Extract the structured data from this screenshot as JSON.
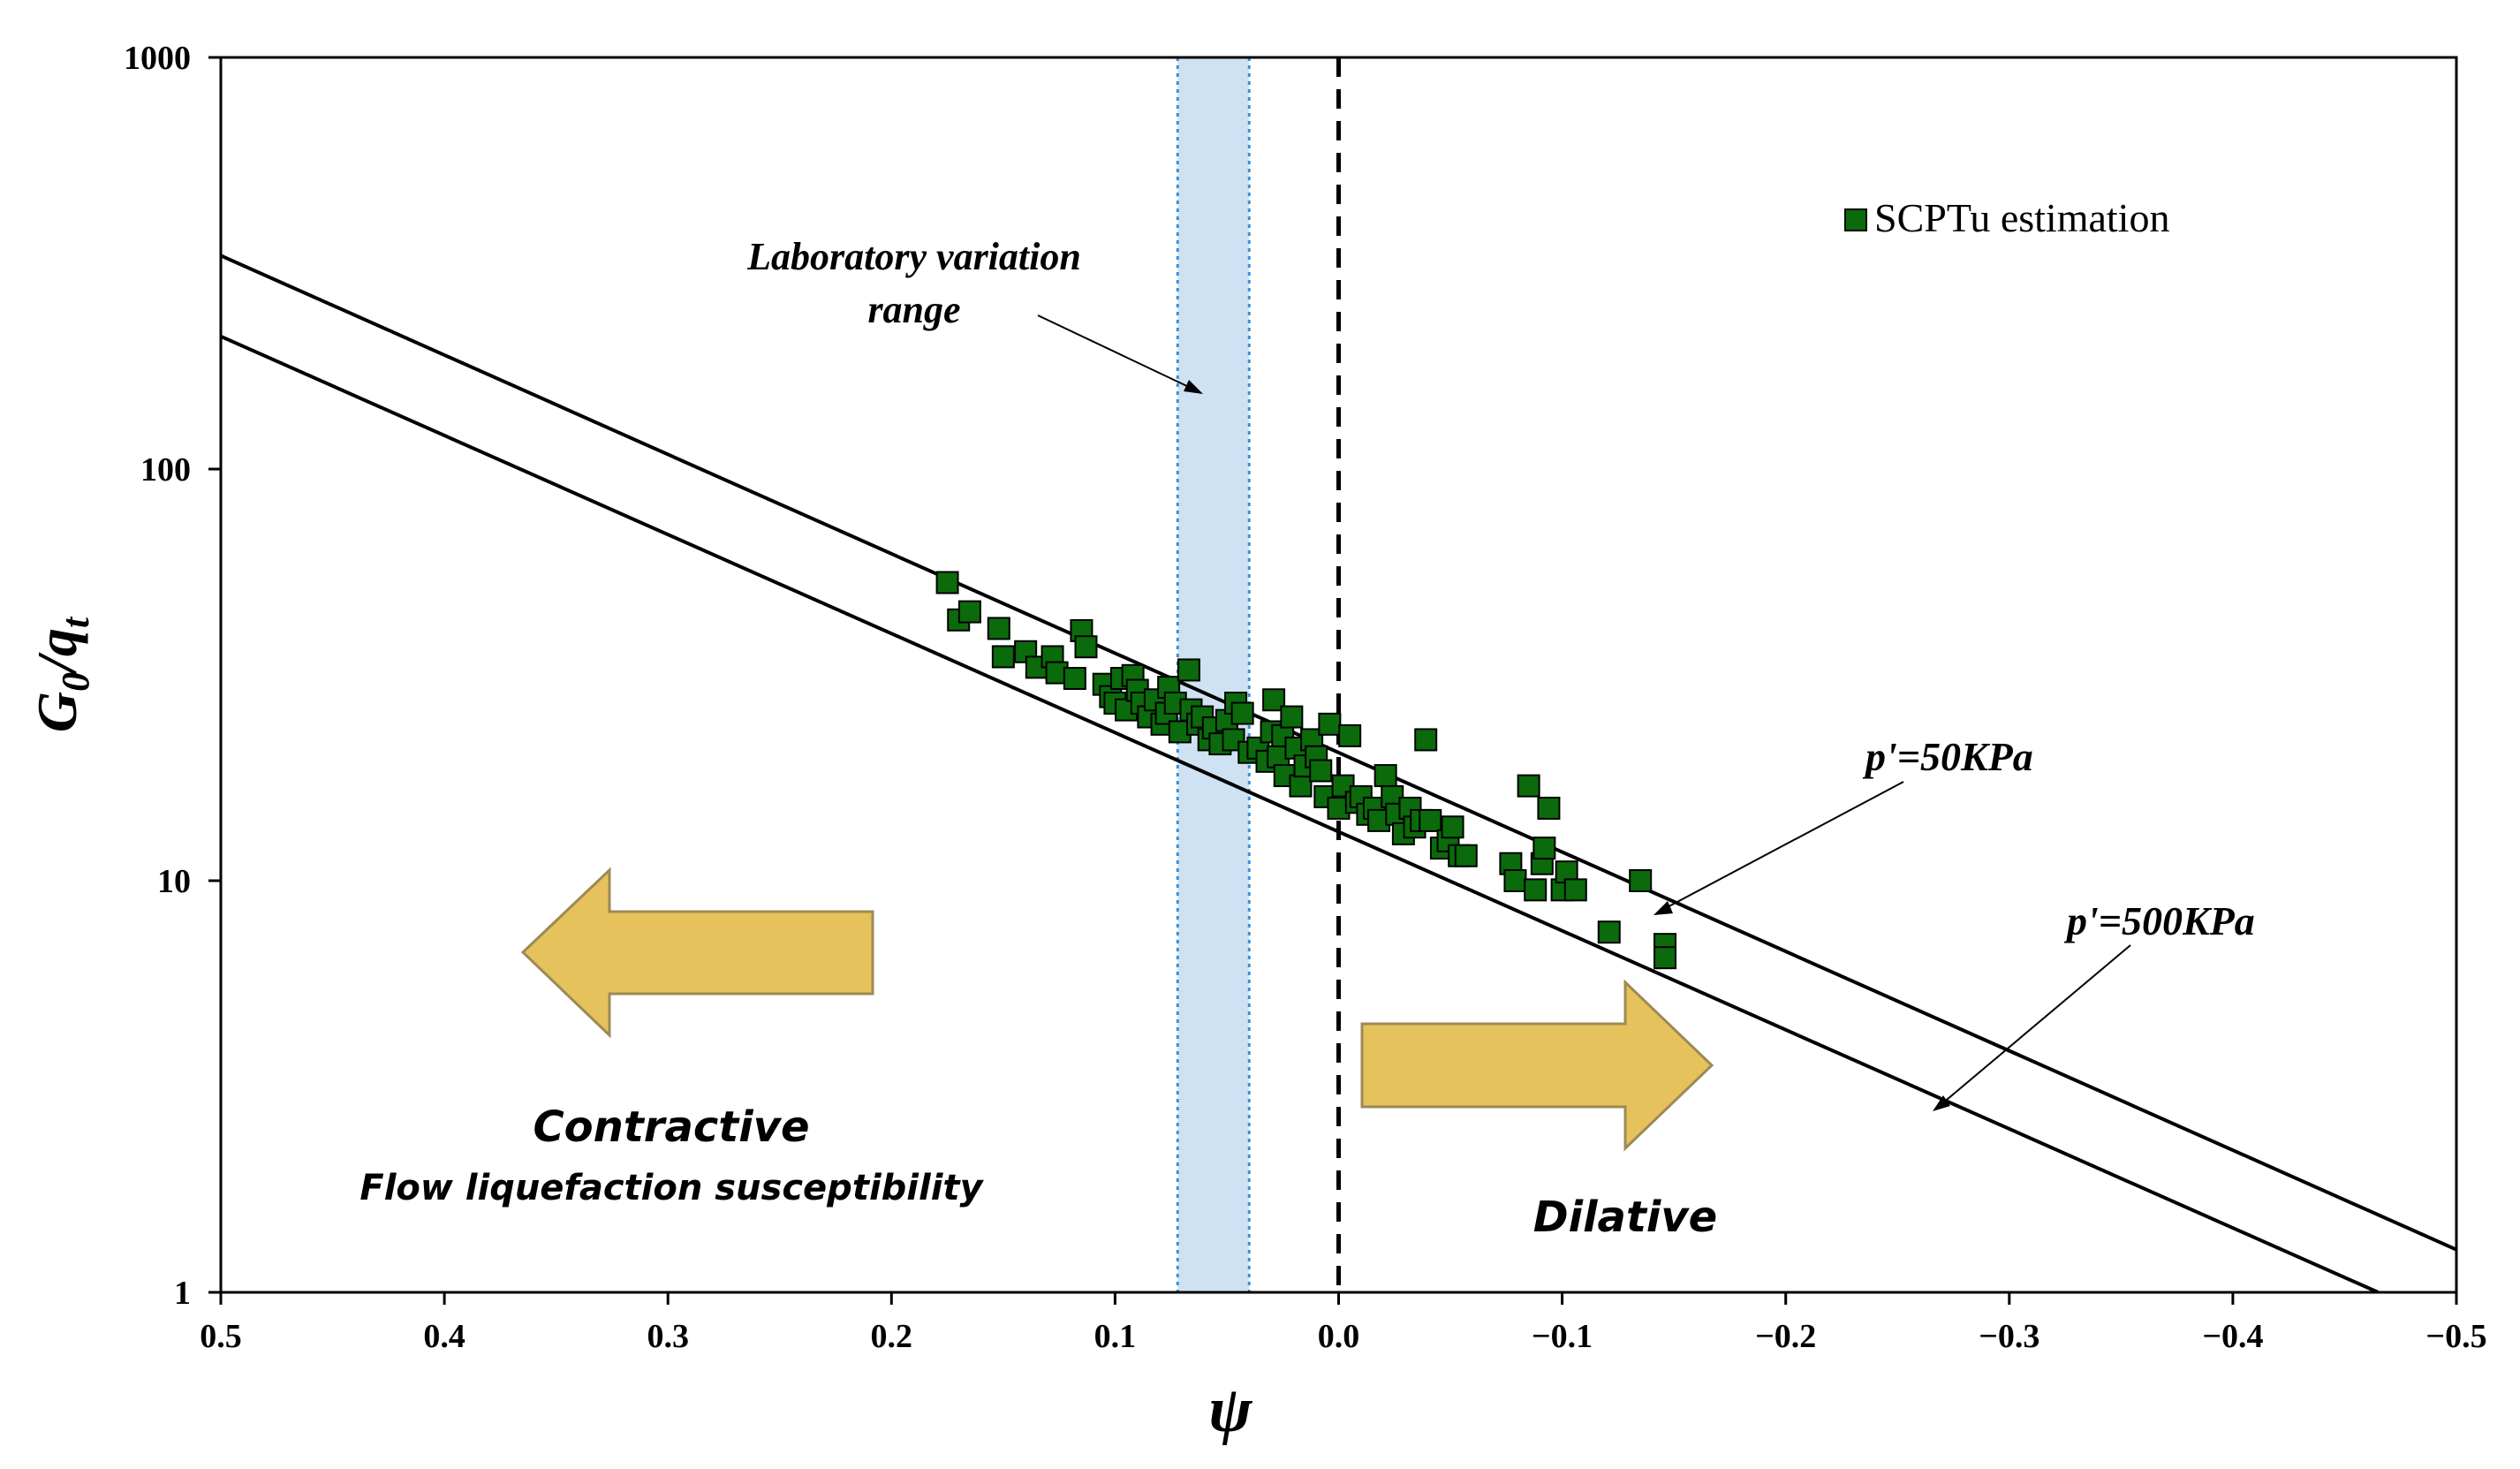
{
  "chart_data": {
    "type": "scatter",
    "xlabel": "ψ",
    "ylabel_main": "G",
    "ylabel_sub1": "0",
    "ylabel_mid": "/q",
    "ylabel_sub2": "t",
    "x_reversed": true,
    "xlim": [
      0.5,
      -0.5
    ],
    "ylim": [
      1,
      1000
    ],
    "yscale": "log",
    "x_ticks": [
      0.5,
      0.4,
      0.3,
      0.2,
      0.1,
      0.0,
      -0.1,
      -0.2,
      -0.3,
      -0.4,
      -0.5
    ],
    "x_tick_labels": [
      "0.5",
      "0.4",
      "0.3",
      "0.2",
      "0.1",
      "0.0",
      "−0.1",
      "−0.2",
      "−0.3",
      "−0.4",
      "−0.5"
    ],
    "y_ticks": [
      1,
      10,
      100,
      1000
    ],
    "y_tick_labels": [
      "1",
      "10",
      "100",
      "1000"
    ],
    "legend": {
      "label": "SCPTu estimation",
      "marker_color": "#0b6a0b",
      "position": "top-right"
    },
    "reference_lines": [
      {
        "name": "p'=50KPa",
        "points": [
          [
            0.5,
            330
          ],
          [
            -0.5,
            1.27
          ]
        ]
      },
      {
        "name": "p'=500KPa",
        "points": [
          [
            0.5,
            210
          ],
          [
            -0.465,
            1.0
          ]
        ]
      }
    ],
    "dashed_line_x": 0.0,
    "laboratory_band": {
      "x_from": 0.072,
      "x_to": 0.04,
      "color": "#cfe2f3",
      "label_line1": "Laboratory variation",
      "label_line2": "range"
    },
    "annotations": {
      "p50": "p'=50KPa",
      "p500": "p'=500KPa",
      "contractive": "Contractive",
      "flow": "Flow liquefaction susceptibility",
      "dilative": "Dilative"
    },
    "arrow_color": "#e6c25c",
    "series": [
      {
        "name": "SCPTu estimation",
        "points": [
          [
            0.175,
            53
          ],
          [
            0.17,
            43
          ],
          [
            0.165,
            45
          ],
          [
            0.152,
            41
          ],
          [
            0.15,
            35
          ],
          [
            0.14,
            36
          ],
          [
            0.135,
            33
          ],
          [
            0.128,
            35
          ],
          [
            0.126,
            32
          ],
          [
            0.118,
            31
          ],
          [
            0.115,
            40.5
          ],
          [
            0.113,
            37
          ],
          [
            0.105,
            30
          ],
          [
            0.102,
            28
          ],
          [
            0.1,
            27
          ],
          [
            0.097,
            31
          ],
          [
            0.095,
            26
          ],
          [
            0.092,
            31.5
          ],
          [
            0.09,
            29
          ],
          [
            0.088,
            27
          ],
          [
            0.085,
            25
          ],
          [
            0.082,
            27.5
          ],
          [
            0.079,
            24
          ],
          [
            0.077,
            25.5
          ],
          [
            0.076,
            29.5
          ],
          [
            0.073,
            27
          ],
          [
            0.071,
            23
          ],
          [
            0.067,
            32.5
          ],
          [
            0.066,
            26
          ],
          [
            0.063,
            24
          ],
          [
            0.061,
            25
          ],
          [
            0.058,
            22
          ],
          [
            0.056,
            23.5
          ],
          [
            0.053,
            21.5
          ],
          [
            0.05,
            24.5
          ],
          [
            0.047,
            22
          ],
          [
            0.046,
            27
          ],
          [
            0.043,
            25.5
          ],
          [
            0.04,
            20.5
          ],
          [
            0.036,
            21
          ],
          [
            0.032,
            19.5
          ],
          [
            0.03,
            23
          ],
          [
            0.029,
            27.5
          ],
          [
            0.027,
            20
          ],
          [
            0.025,
            22.5
          ],
          [
            0.024,
            18
          ],
          [
            0.021,
            25
          ],
          [
            0.019,
            21
          ],
          [
            0.017,
            17
          ],
          [
            0.015,
            19
          ],
          [
            0.012,
            22
          ],
          [
            0.01,
            20
          ],
          [
            0.008,
            18.5
          ],
          [
            0.006,
            16
          ],
          [
            0.004,
            24
          ],
          [
            0.0,
            15
          ],
          [
            -0.002,
            17
          ],
          [
            -0.005,
            22.5
          ],
          [
            -0.008,
            15.5
          ],
          [
            -0.01,
            16
          ],
          [
            -0.013,
            14.5
          ],
          [
            -0.016,
            15
          ],
          [
            -0.018,
            14
          ],
          [
            -0.021,
            18
          ],
          [
            -0.024,
            16
          ],
          [
            -0.026,
            14.5
          ],
          [
            -0.029,
            13
          ],
          [
            -0.032,
            15
          ],
          [
            -0.034,
            13.5
          ],
          [
            -0.037,
            14
          ],
          [
            -0.039,
            22
          ],
          [
            -0.041,
            14
          ],
          [
            -0.046,
            12
          ],
          [
            -0.049,
            12.5
          ],
          [
            -0.051,
            13.5
          ],
          [
            -0.054,
            11.5
          ],
          [
            -0.057,
            11.5
          ],
          [
            -0.077,
            11
          ],
          [
            -0.079,
            10
          ],
          [
            -0.085,
            17
          ],
          [
            -0.088,
            9.5
          ],
          [
            -0.091,
            11
          ],
          [
            -0.092,
            12
          ],
          [
            -0.094,
            15
          ],
          [
            -0.1,
            9.5
          ],
          [
            -0.102,
            10.5
          ],
          [
            -0.106,
            9.5
          ],
          [
            -0.121,
            7.5
          ],
          [
            -0.135,
            10
          ],
          [
            -0.146,
            7
          ],
          [
            -0.146,
            6.5
          ]
        ]
      }
    ]
  }
}
